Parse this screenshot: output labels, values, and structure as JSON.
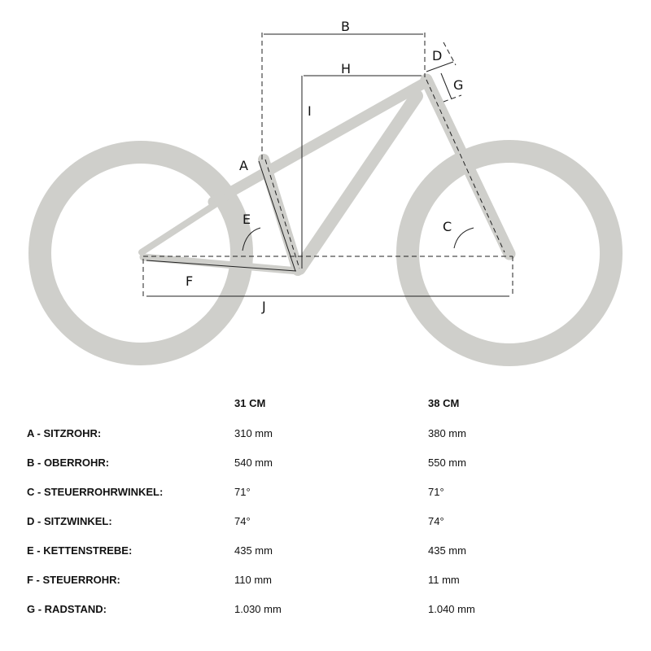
{
  "diagram": {
    "labels": {
      "A": "A",
      "B": "B",
      "C": "C",
      "D": "D",
      "E": "E",
      "F": "F",
      "G": "G",
      "H": "H",
      "I": "I",
      "J": "J"
    },
    "frame_color": "#cfcfcb"
  },
  "table": {
    "headers": [
      "31 CM",
      "38 CM"
    ],
    "rows": [
      {
        "label": "A - SITZROHR:",
        "v1": "310 mm",
        "v2": "380 mm"
      },
      {
        "label": "B - OBERROHR:",
        "v1": "540 mm",
        "v2": "550 mm"
      },
      {
        "label": "C - STEUERROHRWINKEL:",
        "v1": "71°",
        "v2": "71°"
      },
      {
        "label": "D - SITZWINKEL:",
        "v1": "74°",
        "v2": "74°"
      },
      {
        "label": "E - KETTENSTREBE:",
        "v1": "435 mm",
        "v2": "435 mm"
      },
      {
        "label": "F - STEUERROHR:",
        "v1": "110 mm",
        "v2": "11 mm"
      },
      {
        "label": "G - RADSTAND:",
        "v1": "1.030 mm",
        "v2": "1.040 mm"
      }
    ]
  }
}
